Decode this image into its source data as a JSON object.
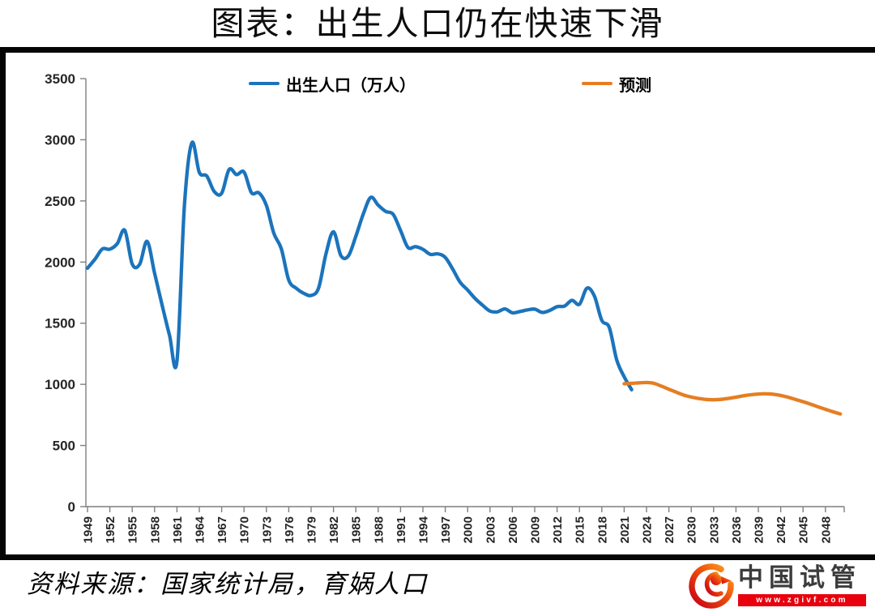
{
  "page": {
    "title": "图表：出生人口仍在快速下滑",
    "source_note": "资料来源：国家统计局，育娲人口"
  },
  "branding": {
    "logo_icon": "phoenix-icon",
    "name": "中国试管",
    "website": "www.zgivf.com",
    "bar_color": "#e8000d",
    "name_color": "#3c3c3c"
  },
  "chart_data": {
    "type": "line",
    "title": "图表：出生人口仍在快速下滑",
    "xlabel": "",
    "ylabel": "",
    "ylim": [
      0,
      3500
    ],
    "yticks": [
      0,
      500,
      1000,
      1500,
      2000,
      2500,
      3000,
      3500
    ],
    "xticks": [
      1949,
      1952,
      1955,
      1958,
      1961,
      1964,
      1967,
      1970,
      1973,
      1976,
      1979,
      1982,
      1985,
      1988,
      1991,
      1994,
      1997,
      2000,
      2003,
      2006,
      2009,
      2012,
      2015,
      2018,
      2021,
      2024,
      2027,
      2030,
      2033,
      2036,
      2039,
      2042,
      2045,
      2048
    ],
    "x_range": [
      1949,
      2050
    ],
    "grid": false,
    "legend_position": "top",
    "axis_color": "#7f7f7f",
    "tick_label_color": "#262626",
    "series": [
      {
        "name": "出生人口（万人）",
        "color": "#1b74bc",
        "x": [
          1949,
          1950,
          1951,
          1952,
          1953,
          1954,
          1955,
          1956,
          1957,
          1958,
          1959,
          1960,
          1961,
          1962,
          1963,
          1964,
          1965,
          1966,
          1967,
          1968,
          1969,
          1970,
          1971,
          1972,
          1973,
          1974,
          1975,
          1976,
          1977,
          1978,
          1979,
          1980,
          1981,
          1982,
          1983,
          1984,
          1985,
          1986,
          1987,
          1988,
          1989,
          1990,
          1991,
          1992,
          1993,
          1994,
          1995,
          1996,
          1997,
          1998,
          1999,
          2000,
          2001,
          2002,
          2003,
          2004,
          2005,
          2006,
          2007,
          2008,
          2009,
          2010,
          2011,
          2012,
          2013,
          2014,
          2015,
          2016,
          2017,
          2018,
          2019,
          2020,
          2021,
          2022
        ],
        "values": [
          1950,
          2023,
          2107,
          2105,
          2151,
          2260,
          1984,
          1982,
          2169,
          1909,
          1650,
          1402,
          1190,
          2460,
          2975,
          2733,
          2704,
          2577,
          2563,
          2757,
          2715,
          2736,
          2567,
          2566,
          2463,
          2235,
          2109,
          1853,
          1786,
          1745,
          1727,
          1787,
          2069,
          2248,
          2052,
          2050,
          2211,
          2393,
          2529,
          2465,
          2414,
          2391,
          2258,
          2119,
          2126,
          2104,
          2063,
          2067,
          2038,
          1942,
          1834,
          1771,
          1702,
          1647,
          1599,
          1593,
          1617,
          1585,
          1595,
          1608,
          1615,
          1588,
          1604,
          1635,
          1640,
          1687,
          1655,
          1786,
          1723,
          1523,
          1465,
          1200,
          1062,
          956
        ]
      },
      {
        "name": "预测",
        "color": "#e57e22",
        "x": [
          2021,
          2022,
          2023,
          2024,
          2025,
          2026,
          2027,
          2028,
          2029,
          2030,
          2031,
          2032,
          2033,
          2034,
          2035,
          2036,
          2037,
          2038,
          2039,
          2040,
          2041,
          2042,
          2043,
          2044,
          2045,
          2046,
          2047,
          2048,
          2049,
          2050
        ],
        "values": [
          1005,
          1008,
          1012,
          1015,
          1008,
          985,
          960,
          935,
          912,
          896,
          884,
          876,
          874,
          877,
          885,
          895,
          906,
          915,
          921,
          923,
          919,
          909,
          894,
          876,
          858,
          838,
          816,
          796,
          776,
          758
        ]
      }
    ]
  }
}
